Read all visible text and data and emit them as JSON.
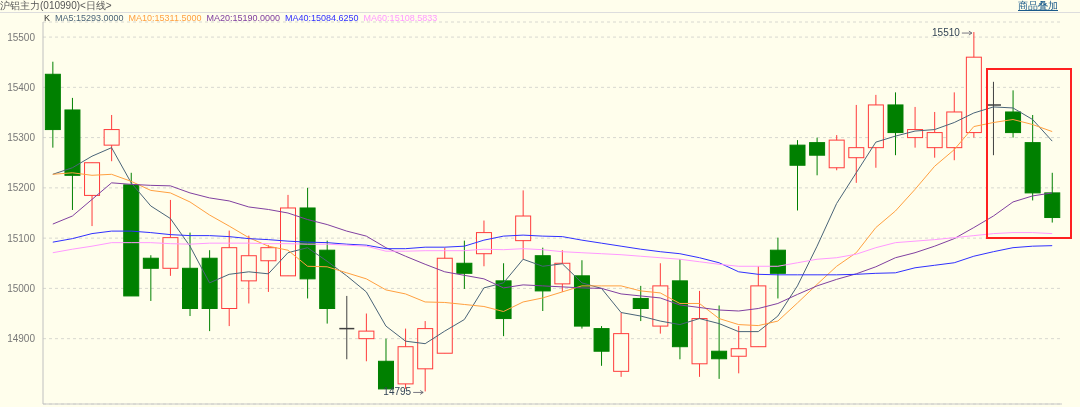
{
  "chart_data": {
    "type": "candlestick",
    "title": "沪铝主力(010990)<日线>",
    "legend_title": "K",
    "grid": "y",
    "annotations": [
      "15510",
      {
        "text": "14795",
        "y": 14795
      },
      "商品叠加"
    ],
    "categories": [
      null,
      null,
      null,
      null,
      null,
      null,
      null,
      null,
      null,
      null,
      null,
      null,
      null,
      null,
      null,
      null,
      null,
      null,
      null,
      null,
      null,
      null,
      null,
      null,
      null,
      null,
      null,
      null,
      null,
      null,
      null,
      null,
      null,
      null,
      null,
      null,
      null,
      null,
      null,
      null,
      null,
      null,
      null,
      null,
      null,
      null,
      null,
      null,
      null,
      null,
      null,
      null
    ],
    "ylim": [
      14770,
      15530
    ],
    "yticks": [
      14900,
      15000,
      15100,
      15200,
      15300,
      15400,
      15500
    ],
    "ohlc": [
      [
        15426,
        15451,
        15280,
        15316
      ],
      [
        15355,
        15379,
        15156,
        15225
      ],
      [
        15185,
        15250,
        15124,
        15250
      ],
      [
        15285,
        15345,
        15253,
        15316
      ],
      [
        15206,
        15230,
        14985,
        14985
      ],
      [
        15060,
        15066,
        14975,
        15040
      ],
      [
        15040,
        15176,
        15025,
        15101
      ],
      [
        15040,
        15111,
        14945,
        14960
      ],
      [
        15060,
        15076,
        14915,
        14960
      ],
      [
        14960,
        15115,
        14925,
        15081
      ],
      [
        15015,
        15105,
        14970,
        15065
      ],
      [
        15055,
        15086,
        14993,
        15081
      ],
      [
        15025,
        15186,
        15025,
        15160
      ],
      [
        15160,
        15200,
        14980,
        15019
      ],
      [
        15076,
        15095,
        14930,
        14960
      ],
      [
        14920,
        14985,
        14859,
        14920
      ],
      [
        14900,
        14950,
        14855,
        14915
      ],
      [
        14855,
        14900,
        14800,
        14800
      ],
      [
        14810,
        14920,
        14800,
        14884
      ],
      [
        14840,
        14935,
        14795,
        14920
      ],
      [
        14871,
        15081,
        14871,
        15060
      ],
      [
        15050,
        15095,
        14999,
        15030
      ],
      [
        15069,
        15135,
        15044,
        15111
      ],
      [
        15015,
        15050,
        14905,
        14940
      ],
      [
        15095,
        15195,
        15058,
        15144
      ],
      [
        15065,
        15081,
        14955,
        14995
      ],
      [
        15009,
        15076,
        14993,
        15050
      ],
      [
        15025,
        15056,
        14920,
        14925
      ],
      [
        14920,
        14925,
        14846,
        14875
      ],
      [
        14835,
        14952,
        14824,
        14910
      ],
      [
        14980,
        15005,
        14935,
        14960
      ],
      [
        14925,
        15050,
        14910,
        15005
      ],
      [
        15015,
        15058,
        14859,
        14884
      ],
      [
        14850,
        14995,
        14824,
        14940
      ],
      [
        14875,
        14966,
        14820,
        14860
      ],
      [
        14865,
        14925,
        14831,
        14880
      ],
      [
        14884,
        15044,
        14884,
        15005
      ],
      [
        15076,
        15101,
        14980,
        15030
      ],
      [
        15285,
        15295,
        15155,
        15245
      ],
      [
        15290,
        15300,
        15225,
        15265
      ],
      [
        15240,
        15305,
        15235,
        15295
      ],
      [
        15260,
        15365,
        15210,
        15280
      ],
      [
        15280,
        15385,
        15240,
        15365
      ],
      [
        15365,
        15390,
        15265,
        15310
      ],
      [
        15300,
        15361,
        15280,
        15316
      ],
      [
        15280,
        15351,
        15260,
        15310
      ],
      [
        15280,
        15390,
        15255,
        15351
      ],
      [
        15310,
        15510,
        15300,
        15460
      ],
      [
        15365,
        15411,
        15265,
        15365
      ],
      [
        15351,
        15394,
        15300,
        15310
      ],
      [
        15290,
        15345,
        15175,
        15190
      ],
      [
        15190,
        15230,
        15131,
        15141
      ]
    ],
    "colors": [
      "#008000",
      "#008000",
      "#ff3b3b",
      "#ff3b3b",
      "#008000",
      "#008000",
      "#ff3b3b",
      "#008000",
      "#008000",
      "#ff3b3b",
      "#ff3b3b",
      "#ff3b3b",
      "#ff3b3b",
      "#008000",
      "#008000",
      "#404040",
      "#ff3b3b",
      "#008000",
      "#ff3b3b",
      "#ff3b3b",
      "#ff3b3b",
      "#008000",
      "#ff3b3b",
      "#008000",
      "#ff3b3b",
      "#008000",
      "#ff3b3b",
      "#008000",
      "#008000",
      "#ff3b3b",
      "#008000",
      "#ff3b3b",
      "#008000",
      "#ff3b3b",
      "#008000",
      "#ff3b3b",
      "#ff3b3b",
      "#008000",
      "#008000",
      "#008000",
      "#ff3b3b",
      "#ff3b3b",
      "#ff3b3b",
      "#008000",
      "#ff3b3b",
      "#ff3b3b",
      "#ff3b3b",
      "#ff3b3b",
      "#404040",
      "#008000",
      "#008000",
      "#008000"
    ],
    "series": [
      {
        "name": "MA5:15293.0000",
        "type": "line",
        "color": "#4a6478",
        "values": [
          15227,
          15240,
          15263,
          15280,
          15210,
          15164,
          15139,
          15084,
          15011,
          15028,
          15033,
          15029,
          15071,
          15081,
          15054,
          15025,
          14993,
          14925,
          14895,
          14890,
          14915,
          14938,
          15001,
          15011,
          15058,
          15044,
          15049,
          15011,
          15000,
          14952,
          14945,
          14935,
          14928,
          14940,
          14930,
          14914,
          14914,
          14945,
          15005,
          15084,
          15169,
          15230,
          15291,
          15303,
          15313,
          15316,
          15330,
          15349,
          15361,
          15359,
          15336,
          15293
        ]
      },
      {
        "name": "MA10:15311.5000",
        "type": "line",
        "color": "#ffa040",
        "values": [
          15227,
          15230,
          15225,
          15227,
          15213,
          15195,
          15190,
          15172,
          15146,
          15124,
          15101,
          15084,
          15076,
          15044,
          15043,
          15031,
          15019,
          14997,
          14989,
          14973,
          14972,
          14968,
          14964,
          14954,
          14973,
          14981,
          14993,
          15005,
          15005,
          15005,
          14995,
          14991,
          14970,
          14970,
          14940,
          14928,
          14926,
          14935,
          14971,
          15008,
          15044,
          15071,
          15121,
          15154,
          15197,
          15243,
          15276,
          15322,
          15330,
          15336,
          15326,
          15312
        ]
      },
      {
        "name": "MA20:15190.0000",
        "type": "line",
        "color": "#8040a0",
        "values": [
          15128,
          15144,
          15177,
          15210,
          15207,
          15205,
          15204,
          15190,
          15180,
          15174,
          15162,
          15157,
          15150,
          15137,
          15127,
          15114,
          15104,
          15081,
          15064,
          15048,
          15033,
          15026,
          15019,
          15001,
          15007,
          15005,
          15003,
          15001,
          15000,
          14989,
          14985,
          14981,
          14967,
          14962,
          14957,
          14955,
          14960,
          14970,
          14988,
          15005,
          15018,
          15029,
          15043,
          15061,
          15071,
          15084,
          15099,
          15121,
          15144,
          15172,
          15184,
          15190
        ]
      },
      {
        "name": "MA40:15084.6250",
        "type": "line",
        "color": "#3030ff",
        "values": [
          15092,
          15099,
          15109,
          15114,
          15114,
          15111,
          15107,
          15105,
          15105,
          15103,
          15099,
          15097,
          15094,
          15092,
          15091,
          15088,
          15086,
          15079,
          15079,
          15082,
          15082,
          15084,
          15096,
          15104,
          15106,
          15104,
          15103,
          15096,
          15090,
          15084,
          15078,
          15073,
          15069,
          15061,
          15051,
          15033,
          15028,
          15027,
          15027,
          15027,
          15027,
          15028,
          15030,
          15031,
          15041,
          15046,
          15051,
          15064,
          15073,
          15081,
          15084,
          15085
        ]
      },
      {
        "name": "MA60:15108.5833",
        "type": "line",
        "color": "#ff99ff",
        "values": [
          15071,
          15078,
          15084,
          15091,
          15091,
          15091,
          15089,
          15088,
          15090,
          15090,
          15090,
          15089,
          15089,
          15088,
          15088,
          15086,
          15084,
          15074,
          15074,
          15075,
          15075,
          15075,
          15078,
          15077,
          15079,
          15077,
          15073,
          15071,
          15069,
          15067,
          15064,
          15061,
          15058,
          15053,
          15048,
          15044,
          15044,
          15044,
          15051,
          15058,
          15061,
          15068,
          15081,
          15091,
          15094,
          15097,
          15101,
          15105,
          15109,
          15111,
          15111,
          15109
        ]
      }
    ]
  }
}
